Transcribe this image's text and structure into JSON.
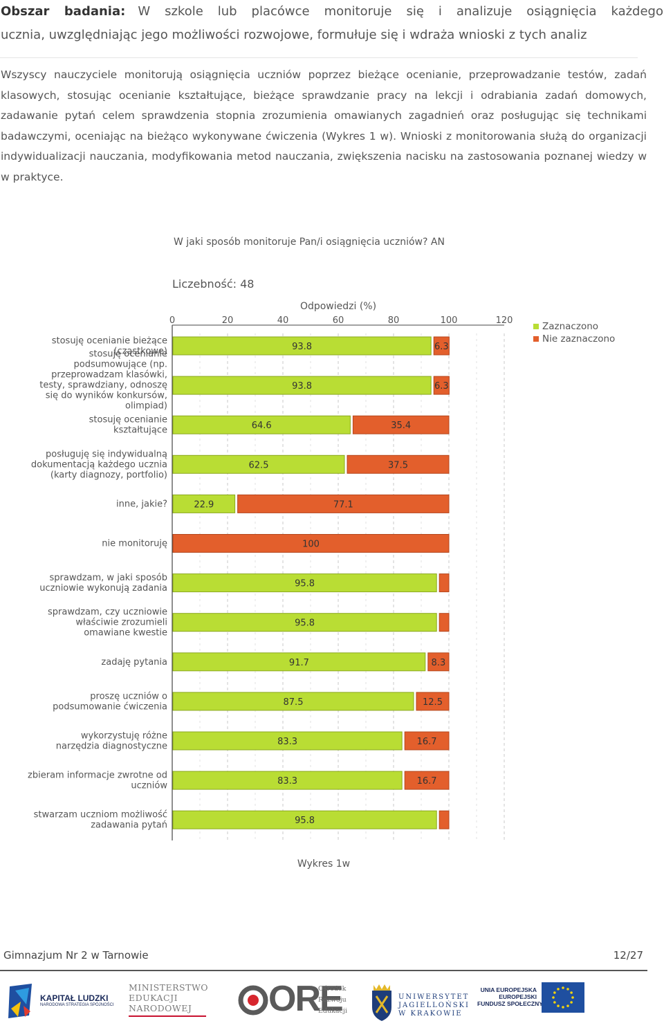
{
  "header": {
    "label": "Obszar badania:",
    "line1": "W szkole lub placówce monitoruje się i analizuje osiągnięcia każdego",
    "line2": "ucznia, uwzględniając jego możliwości rozwojowe, formułuje się i wdraża wnioski z tych analiz"
  },
  "paragraph": "Wszyscy nauczyciele monitorują osiągnięcia uczniów poprzez bieżące ocenianie, przeprowadzanie testów, zadań klasowych, stosując ocenianie kształtujące, bieżące sprawdzanie pracy na lekcji i odrabiania zadań domowych, zadawanie pytań celem sprawdzenia stopnia zrozumienia omawianych zagadnień oraz posługując się technikami badawczymi, oceniając na bieżąco wykonywane ćwiczenia (Wykres 1 w). Wnioski z monitorowania służą do organizacji indywidualizacji nauczania, modyfikowania metod nauczania, zwiększenia nacisku na zastosowania poznanej wiedzy w w praktyce.",
  "chart_data": {
    "type": "bar",
    "orientation": "horizontal-stacked",
    "title": "W jaki sposób monitoruje Pan/i osiągnięcia uczniów? AN",
    "count_label": "Liczebność: 48",
    "xlabel": "Odpowiedzi (%)",
    "xlim": [
      0,
      120
    ],
    "xticks": [
      "0",
      "20",
      "40",
      "60",
      "80",
      "100",
      "120"
    ],
    "legend_position": "top-right",
    "categories": [
      [
        "stosuję ocenianie bieżące",
        "(cząstkowe)"
      ],
      [
        "stosuję ocenianie",
        "podsumowujące (np.",
        "przeprowadzam klasówki,",
        "testy, sprawdziany, odnoszę",
        "się do wyników konkursów,",
        "olimpiad)"
      ],
      [
        "stosuję ocenianie",
        "kształtujące"
      ],
      [
        "posługuję się indywidualną",
        "dokumentacją każdego ucznia",
        "(karty diagnozy, portfolio)"
      ],
      [
        "inne, jakie?"
      ],
      [
        "nie monitoruję"
      ],
      [
        "sprawdzam, w jaki sposób",
        "uczniowie wykonują zadania"
      ],
      [
        "sprawdzam, czy uczniowie",
        "właściwie zrozumieli",
        "omawiane kwestie"
      ],
      [
        "zadaję pytania"
      ],
      [
        "proszę uczniów o",
        "podsumowanie ćwiczenia"
      ],
      [
        "wykorzystuję różne",
        "narzędzia diagnostyczne"
      ],
      [
        "zbieram informacje zwrotne od",
        "uczniów"
      ],
      [
        "stwarzam uczniom możliwość",
        "zadawania pytań"
      ]
    ],
    "series": [
      {
        "name": "Zaznaczono",
        "color": "#b9dd34",
        "values": [
          93.8,
          93.8,
          64.6,
          62.5,
          22.9,
          0,
          95.8,
          95.8,
          91.7,
          87.5,
          83.3,
          83.3,
          95.8
        ],
        "labels": [
          "93.8",
          "93.8",
          "64.6",
          "62.5",
          "22.9",
          "",
          "95.8",
          "95.8",
          "91.7",
          "87.5",
          "83.3",
          "83.3",
          "95.8"
        ]
      },
      {
        "name": "Nie zaznaczono",
        "color": "#e35f2c",
        "values": [
          6.3,
          6.3,
          35.4,
          37.5,
          77.1,
          100,
          4.2,
          4.2,
          8.3,
          12.5,
          16.7,
          16.7,
          4.2
        ],
        "labels": [
          "6.3",
          "6.3",
          "35.4",
          "37.5",
          "77.1",
          "100",
          "",
          "",
          "8.3",
          "12.5",
          "16.7",
          "16.7",
          ""
        ]
      }
    ]
  },
  "caption": "Wykres 1w",
  "footer": {
    "school": "Gimnazjum Nr 2 w Tarnowie",
    "page": "12/27"
  },
  "logos": {
    "kapital": "KAPITAŁ LUDZKI",
    "kapital_sub": "NARODOWA STRATEGIA SPÓJNOŚCI",
    "men": "MINISTERSTWO\nEDUKACJI\nNARODOWEJ",
    "ore_big": "ORE",
    "ore_small": "Ośrodek\nRozwoju\nEdukacji",
    "uj": "UNIWERSYTET\nJAGIELLOŃSKI\nW KRAKOWIE",
    "ue": "UNIA EUROPEJSKA\nEUROPEJSKI\nFUNDUSZ SPOŁECZNY"
  }
}
